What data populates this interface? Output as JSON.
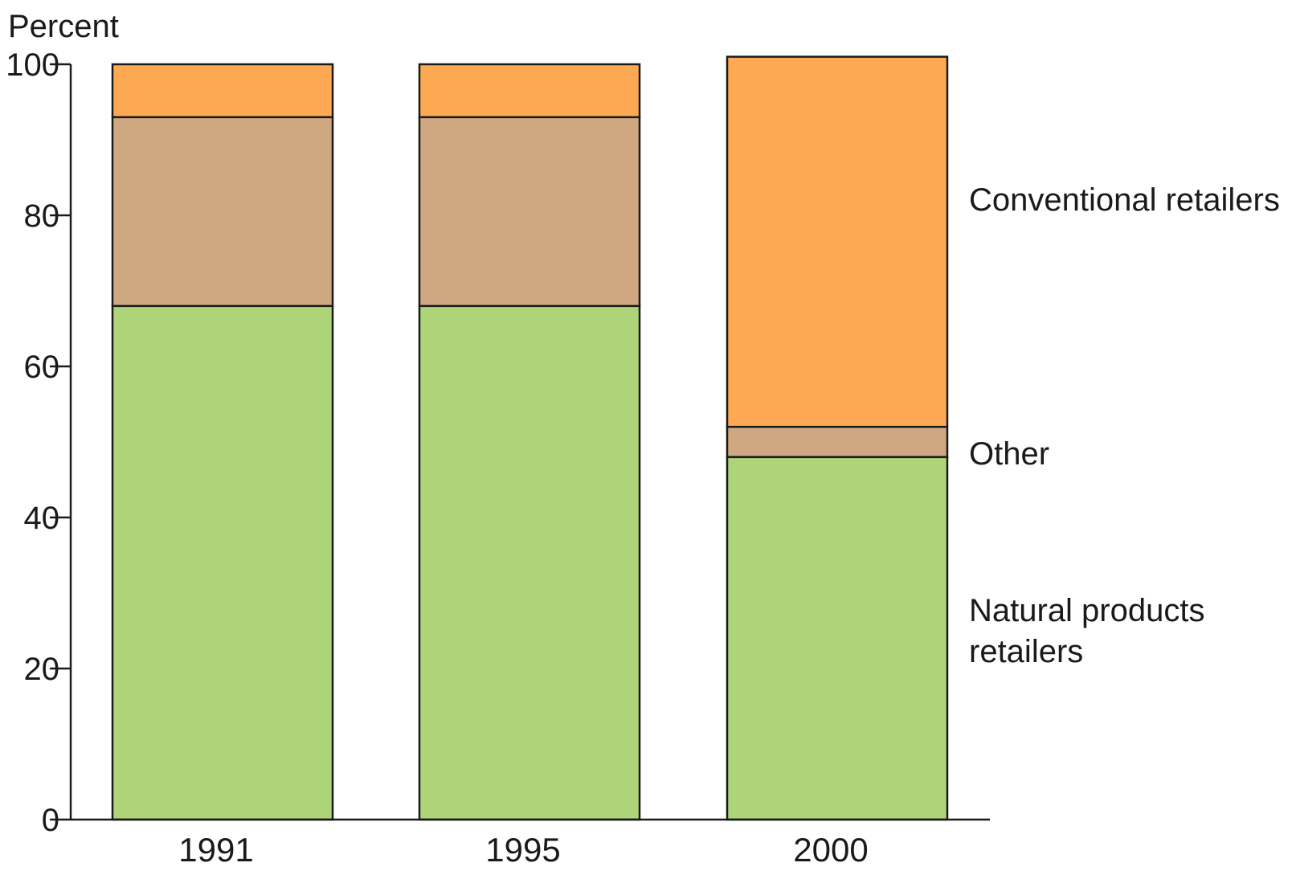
{
  "chart_data": {
    "type": "bar",
    "stacked": true,
    "ylabel": "Percent",
    "xlabel": "",
    "ylim": [
      0,
      100
    ],
    "yticks": [
      "0",
      "20",
      "40",
      "60",
      "80",
      "100"
    ],
    "categories": [
      "1991",
      "1995",
      "2000"
    ],
    "series": [
      {
        "name": "Natural products retailers",
        "color": "#aed479",
        "values": [
          68,
          68,
          48
        ]
      },
      {
        "name": "Other",
        "color": "#cfa781",
        "values": [
          25,
          25,
          4
        ]
      },
      {
        "name": "Conventional retailers",
        "color": "#fda954",
        "values": [
          7,
          7,
          49
        ]
      }
    ],
    "legend_placement": "right of bars, labels aligned with segments",
    "legend_labels": {
      "conventional": "Conventional retailers",
      "other": "Other",
      "natural_line1": "Natural products",
      "natural_line2": "retailers"
    },
    "grid": false
  }
}
